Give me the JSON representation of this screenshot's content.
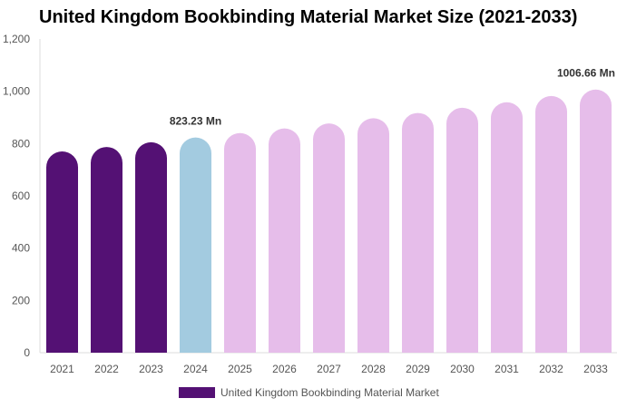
{
  "chart_data": {
    "type": "bar",
    "title": "United Kingdom Bookbinding Material Market Size (2021-2033)",
    "categories": [
      "2021",
      "2022",
      "2023",
      "2024",
      "2025",
      "2026",
      "2027",
      "2028",
      "2029",
      "2030",
      "2031",
      "2032",
      "2033"
    ],
    "series": [
      {
        "name": "United Kingdom Bookbinding Material Market",
        "values": [
          770,
          787,
          805,
          823.23,
          840,
          858,
          877,
          897,
          917,
          937,
          958,
          982,
          1006.66
        ]
      }
    ],
    "bar_colors": [
      "#541174",
      "#541174",
      "#541174",
      "#a3cbe0",
      "#e6bdea",
      "#e6bdea",
      "#e6bdea",
      "#e6bdea",
      "#e6bdea",
      "#e6bdea",
      "#e6bdea",
      "#e6bdea",
      "#e6bdea"
    ],
    "data_labels": [
      {
        "index": 3,
        "text": "823.23 Mn"
      },
      {
        "index": 12,
        "text": "1006.66 Mn"
      }
    ],
    "yticks": [
      0,
      200,
      400,
      600,
      800,
      1000,
      1200
    ],
    "ytick_labels": [
      "0",
      "200",
      "400",
      "600",
      "800",
      "1,000",
      "1,200"
    ],
    "ylim": [
      0,
      1200
    ],
    "legend_position": "bottom",
    "legend_color": "#541174",
    "grid": false
  }
}
